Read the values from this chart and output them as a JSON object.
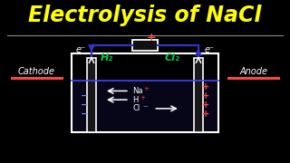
{
  "title": "Electrolysis of NaCl",
  "title_color": "#FFFF00",
  "bg_color": "#000000",
  "title_fontsize": 17,
  "cathode_label": "Cathode",
  "anode_label": "Anode",
  "h2_label": "H₂",
  "cl2_label": "Cl₂",
  "h2_color": "#00CC44",
  "cl2_color": "#00CC44",
  "plus_color": "#FF4444",
  "minus_color": "#6688FF",
  "wire_color": "#3333CC",
  "electrode_color": "#FFFFFF",
  "beaker_color": "#FFFFFF",
  "water_line_color": "#4444FF",
  "sep_color": "#888888",
  "cathode_underline_color": "#FF4444",
  "anode_underline_color": "#FF4444"
}
